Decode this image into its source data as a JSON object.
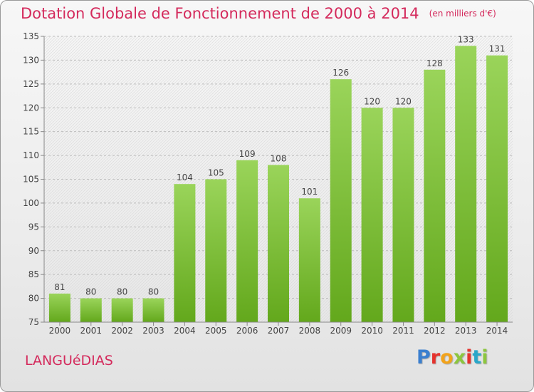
{
  "title": "Dotation Globale de Fonctionnement de 2000 à 2014",
  "subtitle": "(en milliers d'€)",
  "commune": "LANGUéDIAS",
  "logo": {
    "letters": [
      "P",
      "r",
      "o",
      "x",
      "i",
      "t",
      "i"
    ],
    "colors": [
      "#3a7fcf",
      "#e5322d",
      "#f2a31b",
      "#8cc63e",
      "#e5322d",
      "#2aa7c9",
      "#8cc63e"
    ]
  },
  "colors": {
    "accent": "#d42a5c",
    "bar_light": "#9ad45a",
    "bar_dark": "#63a81c"
  },
  "chart_data": {
    "type": "bar",
    "title": "Dotation Globale de Fonctionnement de 2000 à 2014",
    "subtitle": "(en milliers d'€)",
    "categories": [
      "2000",
      "2001",
      "2002",
      "2003",
      "2004",
      "2005",
      "2006",
      "2007",
      "2008",
      "2009",
      "2010",
      "2011",
      "2012",
      "2013",
      "2014"
    ],
    "values": [
      81,
      80,
      80,
      80,
      104,
      105,
      109,
      108,
      101,
      126,
      120,
      120,
      128,
      133,
      131
    ],
    "ylim": [
      75,
      135
    ],
    "yticks": [
      75,
      80,
      85,
      90,
      95,
      100,
      105,
      110,
      115,
      120,
      125,
      130,
      135
    ],
    "grid": true,
    "data_labels": true
  }
}
